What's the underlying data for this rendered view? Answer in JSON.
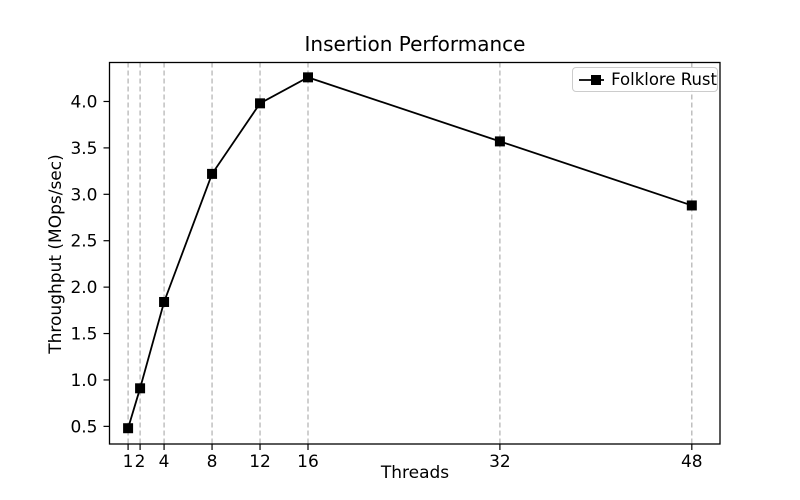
{
  "figure": {
    "background_color": "#ffffff"
  },
  "chart_data": {
    "type": "line",
    "title": "Insertion Performance",
    "xlabel": "Threads",
    "ylabel": "Throughput (MOps/sec)",
    "x": [
      1,
      2,
      4,
      8,
      12,
      16,
      32,
      48
    ],
    "series": [
      {
        "name": "Folklore Rust",
        "values": [
          0.48,
          0.91,
          1.84,
          3.22,
          3.98,
          4.26,
          3.57,
          2.88
        ],
        "color": "#000000",
        "marker": "square",
        "line_style": "solid"
      }
    ],
    "xticks": [
      1,
      2,
      4,
      8,
      12,
      16,
      32,
      48
    ],
    "xtick_labels": [
      "1",
      "2",
      "4",
      "8",
      "12",
      "16",
      "32",
      "48"
    ],
    "yticks": [
      0.5,
      1.0,
      1.5,
      2.0,
      2.5,
      3.0,
      3.5,
      4.0
    ],
    "ytick_labels": [
      "0.5",
      "1.0",
      "1.5",
      "2.0",
      "2.5",
      "3.0",
      "3.5",
      "4.0"
    ],
    "xlim": [
      -0.55,
      50.35
    ],
    "ylim": [
      0.31,
      4.42
    ],
    "grid": "vertical-dashed-at-xticks",
    "grid_color": "#b0b0b0",
    "axis_color": "#000000",
    "legend": {
      "position": "upper-right",
      "labels": [
        "Folklore Rust"
      ]
    }
  }
}
